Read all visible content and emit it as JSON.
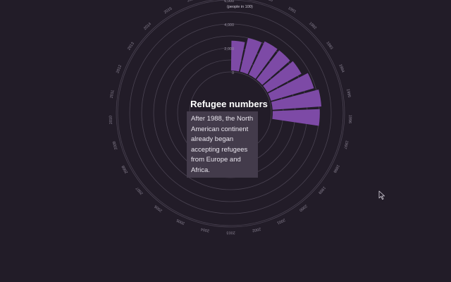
{
  "chart_data": {
    "type": "radial-bar",
    "title": "Refugee numbers",
    "unit_label": "(people in 100)",
    "radial_ticks": [
      "0",
      "2,000",
      "4,000",
      "6,000"
    ],
    "r_range": [
      0,
      6000
    ],
    "grid": true,
    "categories": [
      "1989",
      "1990",
      "1991",
      "1992",
      "1993",
      "1994",
      "1995",
      "1996",
      "1997",
      "1998",
      "1999",
      "2000",
      "2001",
      "2002",
      "2003",
      "2004",
      "2005",
      "2006",
      "2007",
      "2008",
      "2009",
      "2010",
      "2011",
      "2012",
      "2013",
      "2014",
      "2015",
      "2016"
    ],
    "values": [
      2600,
      3000,
      3200,
      3200,
      3350,
      3850,
      4200,
      4050,
      null,
      null,
      null,
      null,
      null,
      null,
      null,
      null,
      null,
      null,
      null,
      null,
      null,
      null,
      null,
      null,
      null,
      null,
      null,
      null
    ],
    "bar_color": "#7d4aa6"
  },
  "annotation": {
    "text": "After 1988, the North American continent already began accepting refugees from Europe and Africa."
  }
}
